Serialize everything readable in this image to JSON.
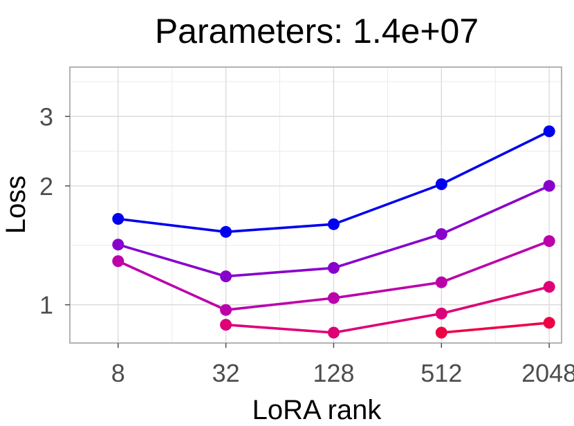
{
  "chart_data": {
    "type": "line",
    "title": "Parameters: 1.4e+07",
    "xlabel": "LoRA rank",
    "ylabel": "Loss",
    "x_scale": "log2",
    "y_scale": "log",
    "x_ticks": [
      {
        "value": 8,
        "label": "8"
      },
      {
        "value": 32,
        "label": "32"
      },
      {
        "value": 128,
        "label": "128"
      },
      {
        "value": 512,
        "label": "512"
      },
      {
        "value": 2048,
        "label": "2048"
      }
    ],
    "y_ticks": [
      {
        "value": 1,
        "label": "1"
      },
      {
        "value": 2,
        "label": "2"
      },
      {
        "value": 3,
        "label": "3"
      }
    ],
    "xlim": [
      4.3,
      2400
    ],
    "ylim": [
      0.8,
      4.0
    ],
    "grid": true,
    "legend": "none",
    "series": [
      {
        "color": "#0000ee",
        "points": [
          [
            8,
            1.65
          ],
          [
            32,
            1.53
          ],
          [
            128,
            1.6
          ],
          [
            512,
            2.02
          ],
          [
            2048,
            2.75
          ]
        ]
      },
      {
        "color": "#8800cc",
        "points": [
          [
            8,
            1.42
          ],
          [
            32,
            1.18
          ],
          [
            128,
            1.24
          ],
          [
            512,
            1.51
          ],
          [
            2048,
            2.0
          ]
        ]
      },
      {
        "color": "#bb00aa",
        "points": [
          [
            8,
            1.29
          ],
          [
            32,
            0.97
          ],
          [
            128,
            1.04
          ],
          [
            512,
            1.14
          ],
          [
            2048,
            1.45
          ]
        ]
      },
      {
        "color": "#dd0077",
        "points": [
          [
            32,
            0.89
          ],
          [
            128,
            0.85
          ],
          [
            512,
            0.95
          ],
          [
            2048,
            1.11
          ]
        ]
      },
      {
        "color": "#ee0044",
        "points": [
          [
            512,
            0.85
          ],
          [
            2048,
            0.9
          ]
        ]
      }
    ]
  }
}
